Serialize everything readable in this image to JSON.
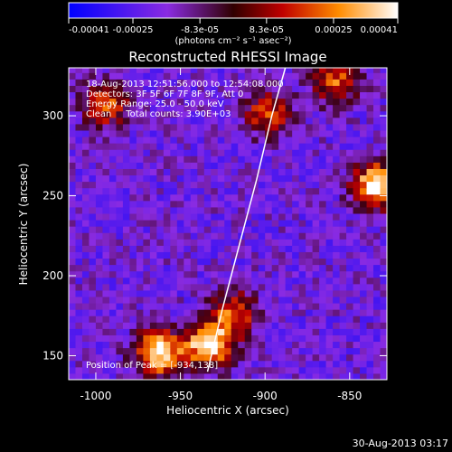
{
  "colorbar": {
    "ticks": [
      "-0.00041",
      "-0.00025",
      "-8.3e-05",
      "8.3e-05",
      "0.00025",
      "0.00041"
    ],
    "tick_values": [
      -0.00041,
      -0.00025,
      -8.3e-05,
      8.3e-05,
      0.00025,
      0.00041
    ],
    "range": [
      -0.00041,
      0.00041
    ],
    "units": "(photons cm⁻² s⁻¹ asec⁻²)",
    "colormap": [
      "#0000ff",
      "#8a2be2",
      "#400000",
      "#c00000",
      "#ff8c00",
      "#ffffff"
    ]
  },
  "info": {
    "time": "18-Aug-2013 12:51:56.000 to 12:54:08.000",
    "detectors": "Detectors: 3F 5F 6F 7F 8F 9F, Att 0",
    "energy": "Energy Range: 25.0 - 50.0 keV",
    "clean": "Clean     Total counts: 3.90E+03"
  },
  "peak": "Position of Peak = [-934,138]",
  "date": "30-Aug-2013 03:17",
  "chart_data": {
    "type": "heatmap",
    "title": "Reconstructed RHESSI Image",
    "xlabel": "Heliocentric X (arcsec)",
    "ylabel": "Heliocentric Y (arcsec)",
    "xlim": [
      -1016,
      -828
    ],
    "ylim": [
      135,
      330
    ],
    "x_ticks": [
      -1000,
      -950,
      -900,
      -850
    ],
    "y_ticks": [
      150,
      200,
      250,
      300
    ],
    "limb_line": {
      "x": [
        -934,
        -925,
        -915,
        -905,
        -896,
        -888
      ],
      "y": [
        140,
        180,
        220,
        260,
        300,
        330
      ]
    },
    "peak_position": [
      -934,
      138
    ],
    "hot_regions": [
      {
        "x": -965,
        "y": 150,
        "level": 0.00041
      },
      {
        "x": -935,
        "y": 155,
        "level": 0.00041
      },
      {
        "x": -920,
        "y": 175,
        "level": 0.00025
      },
      {
        "x": -836,
        "y": 255,
        "level": 0.00041
      },
      {
        "x": -996,
        "y": 305,
        "level": 0.00025
      },
      {
        "x": -900,
        "y": 300,
        "level": 0.00025
      },
      {
        "x": -860,
        "y": 320,
        "level": 0.00025
      }
    ]
  }
}
